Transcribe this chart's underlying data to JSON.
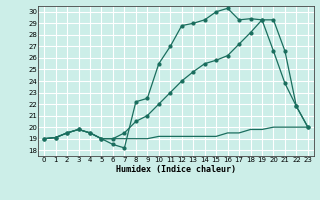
{
  "xlabel": "Humidex (Indice chaleur)",
  "bg_color": "#cceee8",
  "grid_color": "#ffffff",
  "line_color": "#1a6e5e",
  "xlim": [
    -0.5,
    23.5
  ],
  "ylim": [
    17.5,
    30.5
  ],
  "xticks": [
    0,
    1,
    2,
    3,
    4,
    5,
    6,
    7,
    8,
    9,
    10,
    11,
    12,
    13,
    14,
    15,
    16,
    17,
    18,
    19,
    20,
    21,
    22,
    23
  ],
  "yticks": [
    18,
    19,
    20,
    21,
    22,
    23,
    24,
    25,
    26,
    27,
    28,
    29,
    30
  ],
  "series1_x": [
    0,
    1,
    2,
    3,
    4,
    5,
    6,
    7,
    8,
    9,
    10,
    11,
    12,
    13,
    14,
    15,
    16,
    17,
    18,
    19,
    20,
    21,
    22,
    23
  ],
  "series1_y": [
    19.0,
    19.1,
    19.5,
    19.8,
    19.5,
    19.0,
    18.5,
    18.2,
    22.2,
    22.5,
    25.5,
    27.0,
    28.8,
    29.0,
    29.3,
    30.0,
    30.3,
    29.3,
    29.4,
    29.3,
    26.6,
    23.8,
    21.8,
    20.0
  ],
  "series2_x": [
    0,
    1,
    2,
    3,
    4,
    5,
    6,
    7,
    8,
    9,
    10,
    11,
    12,
    13,
    14,
    15,
    16,
    17,
    18,
    19,
    20,
    21,
    22,
    23
  ],
  "series2_y": [
    19.0,
    19.1,
    19.5,
    19.8,
    19.5,
    19.0,
    19.0,
    19.5,
    20.5,
    21.0,
    22.0,
    23.0,
    24.0,
    24.8,
    25.5,
    25.8,
    26.2,
    27.2,
    28.2,
    29.3,
    29.3,
    26.6,
    21.8,
    20.0
  ],
  "series3_x": [
    0,
    1,
    2,
    3,
    4,
    5,
    6,
    7,
    8,
    9,
    10,
    11,
    12,
    13,
    14,
    15,
    16,
    17,
    18,
    19,
    20,
    21,
    22,
    23
  ],
  "series3_y": [
    19.0,
    19.1,
    19.5,
    19.8,
    19.5,
    19.0,
    19.0,
    19.0,
    19.0,
    19.0,
    19.2,
    19.2,
    19.2,
    19.2,
    19.2,
    19.2,
    19.5,
    19.5,
    19.8,
    19.8,
    20.0,
    20.0,
    20.0,
    20.0
  ]
}
